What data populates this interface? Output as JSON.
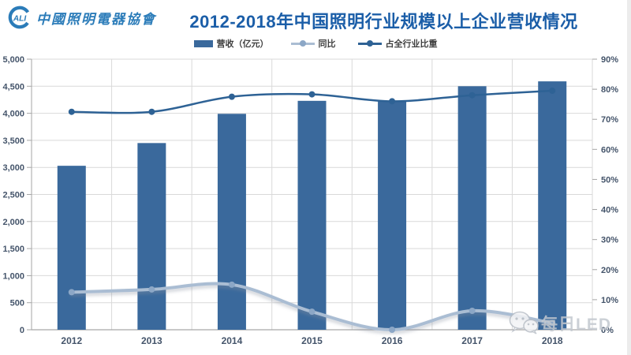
{
  "header": {
    "logo_letters": "ALI",
    "org_name": "中國照明電器協會",
    "title": "2012-2018年中国照明行业规模以上企业营收情况"
  },
  "watermark": {
    "text": "每日LED",
    "icon": "wechat-icon"
  },
  "colors": {
    "title_blue": "#1b5ea8",
    "logo_blue": "#2b7cb9",
    "watermark_gray": "#c3c8cf"
  },
  "chart_data": {
    "type": "combo (bar + 2 smoothed lines)",
    "categories": [
      "2012",
      "2013",
      "2014",
      "2015",
      "2016",
      "2017",
      "2018"
    ],
    "series": [
      {
        "name": "营收（亿元）",
        "type": "bar",
        "axis": "left",
        "color": "#3a699c",
        "values": [
          3030,
          3450,
          3990,
          4230,
          4230,
          4500,
          4590
        ]
      },
      {
        "name": "同比",
        "type": "line",
        "axis": "right",
        "color": "#aabdd3",
        "marker_color": "#8ca7c6",
        "width": 4,
        "shadow": true,
        "values": [
          12.5,
          13.4,
          15.0,
          6.0,
          0.0,
          6.3,
          2.2
        ]
      },
      {
        "name": "占全行业比重",
        "type": "line",
        "axis": "right",
        "color": "#2e6295",
        "marker_color": "#2e6295",
        "width": 2.5,
        "shadow": false,
        "values": [
          72.5,
          72.5,
          77.5,
          78.3,
          76.0,
          78.0,
          79.5
        ]
      }
    ],
    "left_axis": {
      "min": 0,
      "max": 5000,
      "step": 500,
      "labels": [
        "0",
        "500",
        "1,000",
        "1,500",
        "2,000",
        "2,500",
        "3,000",
        "3,500",
        "4,000",
        "4,500",
        "5,000"
      ]
    },
    "right_axis": {
      "min": 0,
      "max": 90,
      "step": 10,
      "labels": [
        "0%",
        "10%",
        "20%",
        "30%",
        "40%",
        "50%",
        "60%",
        "70%",
        "80%",
        "90%"
      ]
    },
    "grid": {
      "color": "#d9d9d9",
      "axis_color": "#a6a6a6",
      "vertical_gridlines": true
    },
    "legend_position": "top"
  }
}
